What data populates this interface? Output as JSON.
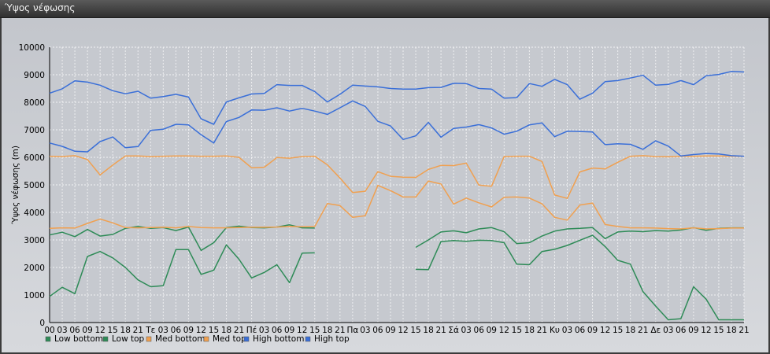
{
  "window": {
    "title": "Ύψος νέφωσης"
  },
  "chart_data": {
    "type": "line",
    "title": "",
    "ylabel": "Ύψος νέφωσης (m)",
    "xlabel": "",
    "ylim": [
      0,
      10000
    ],
    "yticks": [
      0,
      1000,
      2000,
      3000,
      4000,
      5000,
      6000,
      7000,
      8000,
      9000,
      10000
    ],
    "grid": true,
    "legend_position": "bottom-left",
    "x_labels": [
      "00",
      "03",
      "06",
      "09",
      "12",
      "15",
      "18",
      "21",
      "Τε",
      "03",
      "06",
      "09",
      "12",
      "15",
      "18",
      "21",
      "Πέ",
      "03",
      "06",
      "09",
      "12",
      "15",
      "18",
      "21",
      "Πα",
      "03",
      "06",
      "09",
      "12",
      "15",
      "18",
      "21",
      "Σά",
      "03",
      "06",
      "09",
      "12",
      "15",
      "18",
      "21",
      "Κυ",
      "03",
      "06",
      "09",
      "12",
      "15",
      "18",
      "21",
      "Δε",
      "03",
      "06",
      "09",
      "12",
      "15",
      "18",
      "21"
    ],
    "series": [
      {
        "name": "Low bottom",
        "color": "#2e8b57",
        "values": [
          950,
          1280,
          1050,
          2400,
          2580,
          2350,
          2000,
          1550,
          1300,
          1340,
          2650,
          2650,
          1750,
          1900,
          2820,
          2300,
          1620,
          1820,
          2100,
          1450,
          2520,
          2530,
          null,
          null,
          null,
          null,
          null,
          null,
          null,
          1930,
          1920,
          2940,
          2980,
          2950,
          2990,
          2980,
          2900,
          2120,
          2100,
          2580,
          2660,
          2800,
          2990,
          3170,
          2760,
          2260,
          2120,
          1120,
          600,
          100,
          140,
          1300,
          850,
          100,
          100,
          100
        ]
      },
      {
        "name": "Low top",
        "color": "#2e8b57",
        "values": [
          3180,
          3280,
          3120,
          3380,
          3140,
          3200,
          3420,
          3490,
          3420,
          3450,
          3340,
          3470,
          2620,
          2900,
          3450,
          3500,
          3450,
          3440,
          3470,
          3550,
          3440,
          3430,
          null,
          null,
          null,
          null,
          null,
          null,
          null,
          2730,
          3000,
          3290,
          3330,
          3260,
          3400,
          3450,
          3300,
          2870,
          2900,
          3140,
          3320,
          3400,
          3420,
          3450,
          3050,
          3290,
          3320,
          3300,
          3340,
          3320,
          3360,
          3450,
          3350,
          3420,
          3440,
          3440
        ]
      },
      {
        "name": "Med bottom",
        "color": "#f0a050",
        "values": [
          3420,
          3440,
          3430,
          3600,
          3760,
          3620,
          3450,
          3440,
          3450,
          3460,
          3440,
          3490,
          3450,
          3440,
          3440,
          3450,
          3460,
          3460,
          3470,
          3490,
          3480,
          3490,
          4320,
          4250,
          3820,
          3880,
          4980,
          4790,
          4560,
          4560,
          5140,
          5030,
          4300,
          4520,
          4350,
          4200,
          4550,
          4560,
          4520,
          4310,
          3820,
          3720,
          4270,
          4340,
          3560,
          3490,
          3440,
          3440,
          3430,
          3410,
          3400,
          3440,
          3400,
          3410,
          3430,
          3430
        ]
      },
      {
        "name": "Med top",
        "color": "#f0a050",
        "values": [
          6040,
          6030,
          6060,
          5920,
          5360,
          5720,
          6050,
          6050,
          6030,
          6040,
          6050,
          6050,
          6040,
          6040,
          6050,
          6000,
          5620,
          5640,
          5990,
          5970,
          6030,
          6040,
          5730,
          5250,
          4720,
          4770,
          5480,
          5310,
          5280,
          5270,
          5560,
          5710,
          5700,
          5790,
          4990,
          4950,
          6030,
          6040,
          6040,
          5850,
          4630,
          4510,
          5470,
          5610,
          5580,
          5820,
          6040,
          6060,
          6030,
          6020,
          6040,
          6040,
          6050,
          6050,
          6040,
          6040
        ]
      },
      {
        "name": "High bottom",
        "color": "#3a6fd8",
        "values": [
          6520,
          6400,
          6220,
          6200,
          6570,
          6740,
          6350,
          6390,
          6980,
          7020,
          7200,
          7180,
          6820,
          6520,
          7300,
          7450,
          7720,
          7710,
          7800,
          7680,
          7780,
          7680,
          7560,
          7800,
          8050,
          7850,
          7310,
          7140,
          6650,
          6780,
          7270,
          6730,
          7050,
          7100,
          7190,
          7070,
          6840,
          6950,
          7180,
          7250,
          6750,
          6950,
          6940,
          6920,
          6460,
          6490,
          6470,
          6290,
          6600,
          6410,
          6050,
          6100,
          6140,
          6120,
          6060,
          6040
        ]
      },
      {
        "name": "High top",
        "color": "#3a6fd8",
        "values": [
          8330,
          8490,
          8780,
          8730,
          8620,
          8420,
          8310,
          8400,
          8150,
          8210,
          8290,
          8190,
          7400,
          7200,
          8010,
          8160,
          8300,
          8320,
          8640,
          8610,
          8610,
          8390,
          8010,
          8290,
          8620,
          8590,
          8560,
          8500,
          8480,
          8480,
          8530,
          8540,
          8690,
          8680,
          8500,
          8480,
          8150,
          8170,
          8680,
          8580,
          8830,
          8640,
          8110,
          8330,
          8750,
          8790,
          8880,
          8980,
          8620,
          8650,
          8790,
          8640,
          8960,
          9010,
          9120,
          9100
        ]
      }
    ]
  }
}
